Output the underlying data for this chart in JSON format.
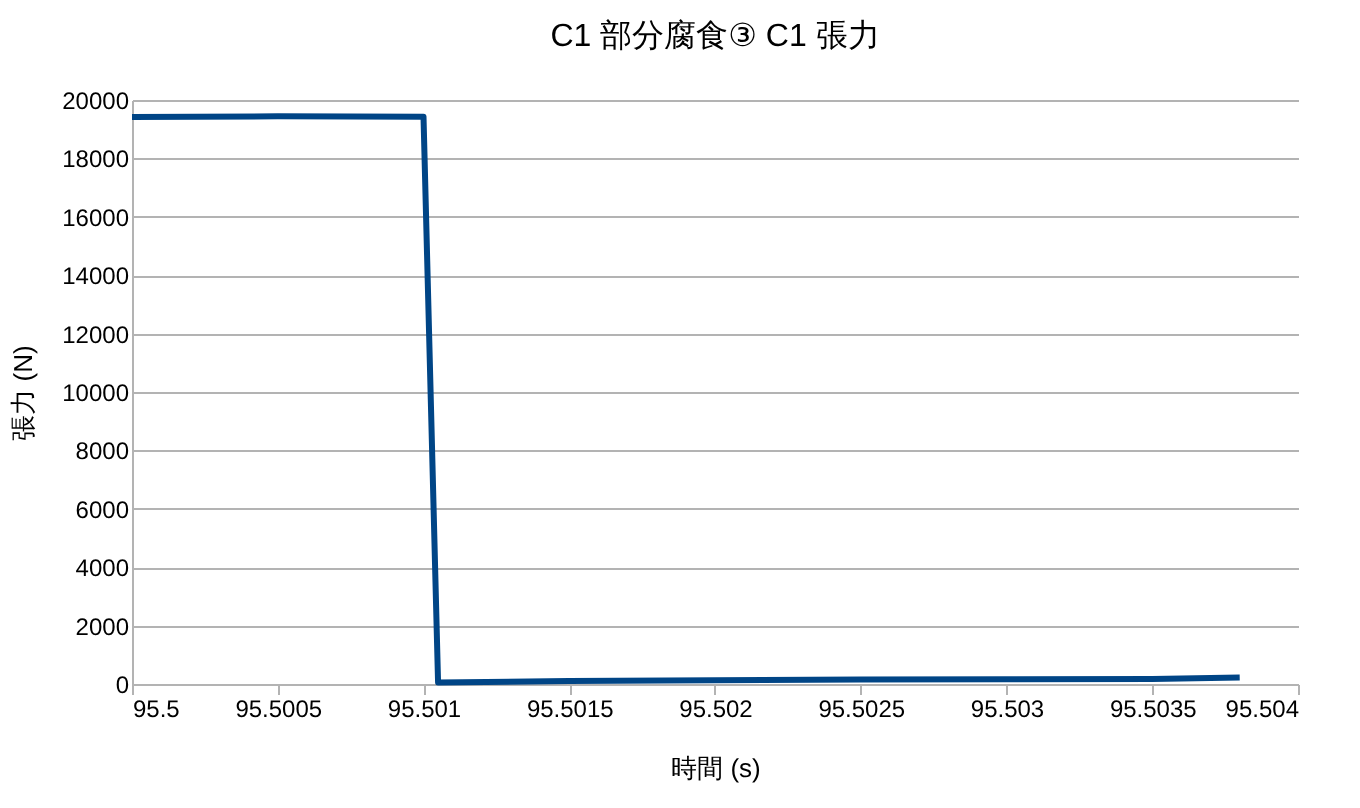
{
  "chart_data": {
    "type": "line",
    "title": "C1  部分腐食③  C1 張力",
    "xlabel": "時間 (s)",
    "ylabel": "張力 (N)",
    "x": [
      95.5,
      95.5005,
      95.501,
      95.50105,
      95.5015,
      95.502,
      95.5025,
      95.503,
      95.5035,
      95.5038
    ],
    "series": [
      {
        "color": "#004586",
        "values": [
          19420,
          19440,
          19430,
          50,
          100,
          130,
          150,
          160,
          170,
          220
        ]
      }
    ],
    "xlim": [
      95.5,
      95.504
    ],
    "xticks": [
      95.5,
      95.5005,
      95.501,
      95.5015,
      95.502,
      95.5025,
      95.503,
      95.5035,
      95.504
    ],
    "ylim": [
      0,
      20000
    ],
    "yticks": [
      0,
      2000,
      4000,
      6000,
      8000,
      10000,
      12000,
      14000,
      16000,
      18000,
      20000
    ],
    "grid": "y",
    "marker": "none",
    "line_style": "solid"
  }
}
